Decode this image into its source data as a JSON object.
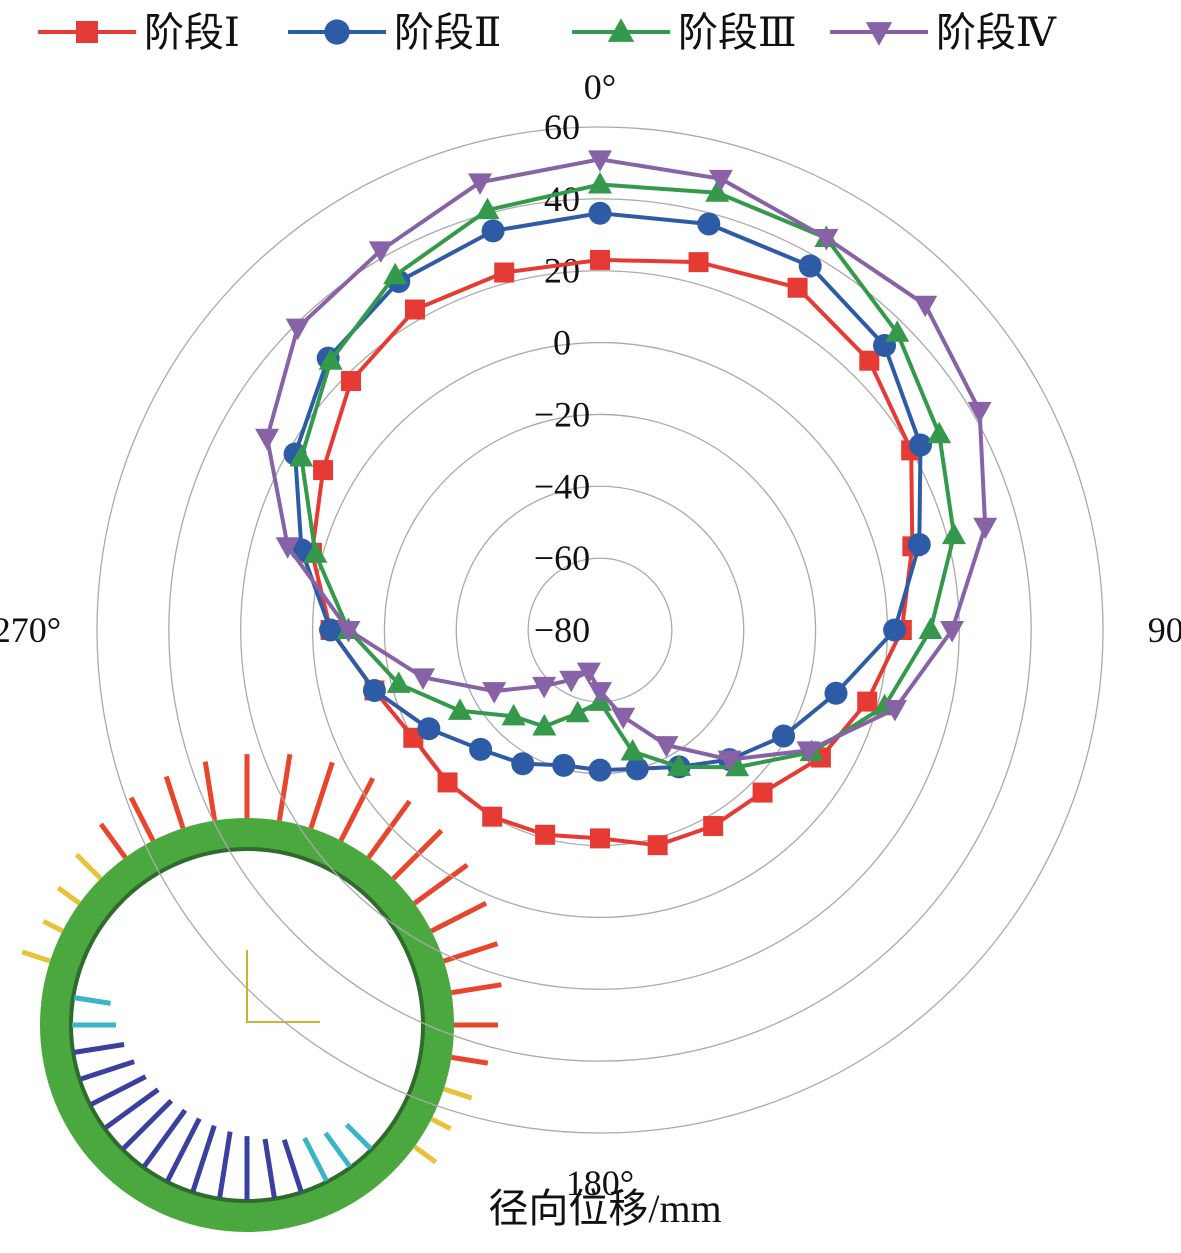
{
  "chart_data": {
    "type": "polar-line",
    "x_label": "径向位移/mm",
    "theta": [
      0,
      15,
      30,
      45,
      60,
      75,
      90,
      105,
      120,
      135,
      150,
      165,
      180,
      195,
      210,
      225,
      240,
      255,
      270,
      285,
      300,
      315,
      330,
      345
    ],
    "thetalim": [
      0,
      360
    ],
    "thetaticks": [
      {
        "value": 0,
        "label": "0°"
      },
      {
        "value": 90,
        "label": "90°"
      },
      {
        "value": 180,
        "label": "180°"
      },
      {
        "value": 270,
        "label": "270°"
      }
    ],
    "rlim": [
      -80,
      60
    ],
    "rticks": [
      {
        "value": -80,
        "label": "−80"
      },
      {
        "value": -60,
        "label": "−60"
      },
      {
        "value": -40,
        "label": "−40"
      },
      {
        "value": -20,
        "label": "−20"
      },
      0,
      20,
      40,
      60
    ],
    "grid": true,
    "legend": "top",
    "series": [
      {
        "name": "阶段Ⅰ",
        "color": "#e63b35",
        "marker": "square",
        "values": [
          23,
          26,
          30,
          26,
          20,
          10,
          4,
          -3,
          -9,
          -16,
          -17,
          -18,
          -22,
          -21,
          -20,
          -20,
          -20,
          -15,
          -5,
          3,
          9,
          18,
          23,
          23
        ]
      },
      {
        "name": "阶段Ⅱ",
        "color": "#2d5ba6",
        "marker": "circle",
        "values": [
          36,
          37,
          37,
          32,
          23,
          12,
          2,
          -12,
          -21,
          -29,
          -36,
          -40,
          -41,
          -41,
          -37,
          -33,
          -25,
          -15,
          -5,
          6,
          18,
          27,
          32,
          35
        ]
      },
      {
        "name": "阶段Ⅲ",
        "color": "#34994a",
        "marker": "triangle",
        "values": [
          44,
          46,
          46,
          37,
          29,
          22,
          12,
          2,
          -12,
          -26,
          -36,
          -45,
          -60,
          -56,
          -49,
          -46,
          -35,
          -22,
          -10,
          2,
          16,
          26,
          34,
          41
        ]
      },
      {
        "name": "阶段Ⅳ",
        "color": "#8862a6",
        "marker": "triangle-down",
        "values": [
          51,
          50,
          46,
          48,
          42,
          31,
          18,
          5,
          -13,
          -29,
          -43,
          -55,
          -63,
          -68,
          -64,
          -58,
          -46,
          -29,
          -10,
          10,
          27,
          39,
          42,
          49
        ]
      }
    ]
  }
}
